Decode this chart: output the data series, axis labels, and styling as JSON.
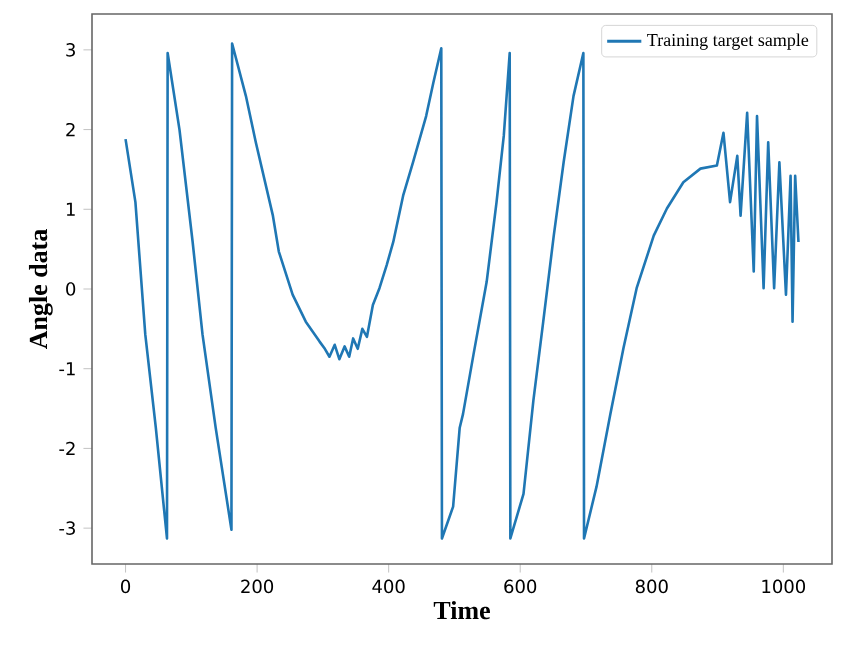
{
  "chart_data": {
    "type": "line",
    "xlabel": "Time",
    "ylabel": "Angle data",
    "x": [
      0,
      15,
      30,
      46,
      63,
      64,
      82,
      102,
      117,
      137,
      161,
      162,
      183,
      198,
      224,
      233,
      254,
      274,
      295,
      303,
      310,
      318,
      325,
      333,
      340,
      346,
      353,
      360,
      367,
      376,
      386,
      397,
      407,
      422,
      437,
      457,
      468,
      480,
      481,
      498,
      508,
      513,
      529,
      549,
      564,
      575,
      584,
      585,
      605,
      620,
      635,
      651,
      666,
      681,
      696,
      697,
      716,
      737,
      757,
      777,
      803,
      823,
      848,
      874,
      899,
      909,
      919,
      930,
      935,
      945,
      955,
      960,
      970,
      977,
      986,
      994,
      1004,
      1011,
      1014,
      1018,
      1023
    ],
    "series": [
      {
        "name": "Training target sample",
        "color": "#1f77b4",
        "values": [
          1.88,
          1.09,
          -0.57,
          -1.74,
          -3.13,
          2.96,
          2.0,
          0.59,
          -0.57,
          -1.74,
          -3.02,
          3.08,
          2.42,
          1.84,
          0.92,
          0.47,
          -0.07,
          -0.41,
          -0.66,
          -0.75,
          -0.85,
          -0.7,
          -0.88,
          -0.72,
          -0.85,
          -0.62,
          -0.75,
          -0.5,
          -0.6,
          -0.2,
          0.01,
          0.3,
          0.59,
          1.17,
          1.59,
          2.17,
          2.59,
          3.02,
          -3.13,
          -2.73,
          -1.74,
          -1.57,
          -0.82,
          0.09,
          1.09,
          1.92,
          2.96,
          -3.13,
          -2.57,
          -1.4,
          -0.41,
          0.67,
          1.59,
          2.42,
          2.96,
          -3.13,
          -2.48,
          -1.57,
          -0.74,
          0.01,
          0.67,
          1.01,
          1.34,
          1.51,
          1.55,
          1.96,
          1.09,
          1.67,
          0.92,
          2.21,
          0.22,
          2.17,
          0.01,
          1.84,
          0.01,
          1.59,
          -0.07,
          1.42,
          -0.41,
          1.42,
          0.59
        ]
      }
    ],
    "xlim": [
      -51,
      1074
    ],
    "ylim": [
      -3.45,
      3.45
    ],
    "xticks": [
      0,
      200,
      400,
      600,
      800,
      1000
    ],
    "yticks": [
      -3,
      -2,
      -1,
      0,
      1,
      2,
      3
    ],
    "legend": "top right"
  }
}
